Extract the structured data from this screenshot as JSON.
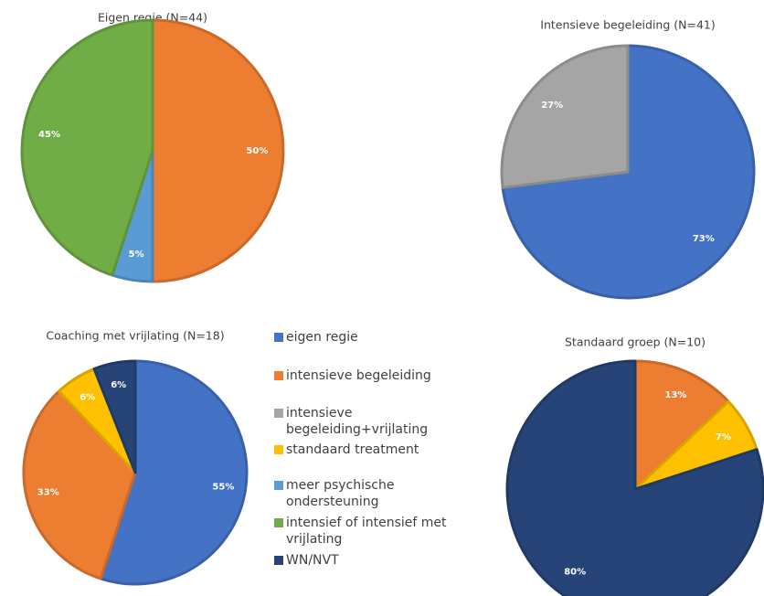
{
  "chart_data": [
    {
      "type": "pie",
      "title": "Eigen regie (N=44)",
      "values": [
        50,
        5,
        45
      ],
      "value_labels": [
        "50%",
        "5%",
        "45%"
      ],
      "colors": [
        "#ed7d31",
        "#5b9bd5",
        "#70ad47"
      ]
    },
    {
      "type": "pie",
      "title": "Intensieve begeleiding (N=41)",
      "values": [
        73,
        27
      ],
      "value_labels": [
        "73%",
        "27%"
      ],
      "colors": [
        "#4472c4",
        "#a5a5a5"
      ]
    },
    {
      "type": "pie",
      "title": "Coaching met vrijlating (N=18)",
      "values": [
        55,
        33,
        6,
        6
      ],
      "value_labels": [
        "55%",
        "33%",
        "6%",
        "6%"
      ],
      "colors": [
        "#4472c4",
        "#ed7d31",
        "#ffc000",
        "#264478"
      ]
    },
    {
      "type": "pie",
      "title": "Standaard groep (N=10)",
      "values": [
        13,
        7,
        80
      ],
      "value_labels": [
        "13%",
        "7%",
        "80%"
      ],
      "colors": [
        "#ed7d31",
        "#ffc000",
        "#264478"
      ]
    }
  ],
  "legend": [
    {
      "name": "eigen regie",
      "color": "#4472c4"
    },
    {
      "name": "intensieve begeleiding",
      "color": "#ed7d31"
    },
    {
      "name": "intensieve begeleiding+vrijlating",
      "color": "#a5a5a5"
    },
    {
      "name": "standaard treatment",
      "color": "#ffc000"
    },
    {
      "name": "meer psychische ondersteuning",
      "color": "#5b9bd5"
    },
    {
      "name": "intensief of intensief met vrijlating",
      "color": "#70ad47"
    },
    {
      "name": "WN/NVT",
      "color": "#264478"
    }
  ]
}
